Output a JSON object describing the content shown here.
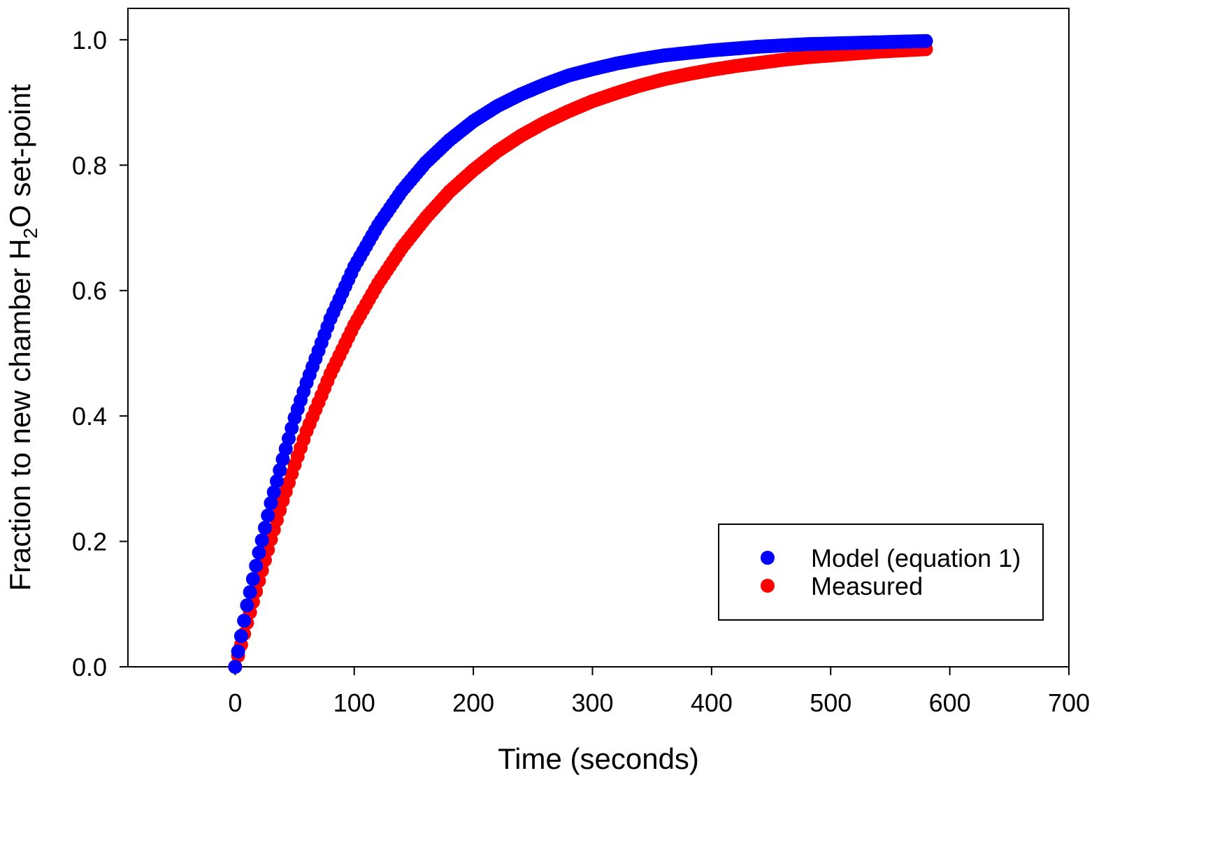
{
  "chart_data": {
    "type": "scatter",
    "xlabel": "Time (seconds)",
    "ylabel": {
      "prefix": "Fraction to new chamber H",
      "subscript": "2",
      "suffix": "O set-point"
    },
    "xlim": [
      -90,
      700
    ],
    "ylim": [
      0,
      1.05
    ],
    "xticks": [
      0,
      100,
      200,
      300,
      400,
      500,
      600,
      700
    ],
    "xtick_labels": [
      "0",
      "100",
      "200",
      "300",
      "400",
      "500",
      "600",
      "700"
    ],
    "yticks": [
      0.0,
      0.2,
      0.4,
      0.6,
      0.8,
      1.0
    ],
    "ytick_labels": [
      "0.0",
      "0.2",
      "0.4",
      "0.6",
      "0.8",
      "1.0"
    ],
    "grid": false,
    "legend_position": "bottom-right",
    "series": [
      {
        "name": "Model (equation 1)",
        "color": "#0000ff",
        "x": [
          0,
          10,
          20,
          30,
          40,
          50,
          60,
          80,
          100,
          120,
          140,
          160,
          180,
          200,
          220,
          240,
          260,
          280,
          300,
          320,
          340,
          360,
          380,
          400,
          420,
          440,
          460,
          480,
          500,
          520,
          540,
          560,
          580
        ],
        "y": [
          0.0,
          0.098,
          0.182,
          0.261,
          0.331,
          0.397,
          0.453,
          0.555,
          0.638,
          0.704,
          0.759,
          0.804,
          0.84,
          0.87,
          0.894,
          0.913,
          0.929,
          0.943,
          0.953,
          0.962,
          0.969,
          0.975,
          0.979,
          0.983,
          0.986,
          0.989,
          0.991,
          0.993,
          0.994,
          0.995,
          0.996,
          0.997,
          0.998
        ]
      },
      {
        "name": "Measured",
        "color": "#ff0000",
        "x": [
          0,
          10,
          20,
          30,
          40,
          50,
          60,
          80,
          100,
          120,
          140,
          160,
          180,
          200,
          220,
          240,
          260,
          280,
          300,
          320,
          340,
          360,
          380,
          400,
          420,
          440,
          460,
          480,
          500,
          520,
          540,
          560,
          580
        ],
        "y": [
          0.0,
          0.07,
          0.137,
          0.203,
          0.265,
          0.322,
          0.376,
          0.467,
          0.545,
          0.611,
          0.668,
          0.716,
          0.758,
          0.792,
          0.822,
          0.847,
          0.868,
          0.886,
          0.902,
          0.915,
          0.927,
          0.937,
          0.945,
          0.952,
          0.958,
          0.963,
          0.968,
          0.972,
          0.975,
          0.978,
          0.981,
          0.983,
          0.985
        ]
      }
    ]
  }
}
